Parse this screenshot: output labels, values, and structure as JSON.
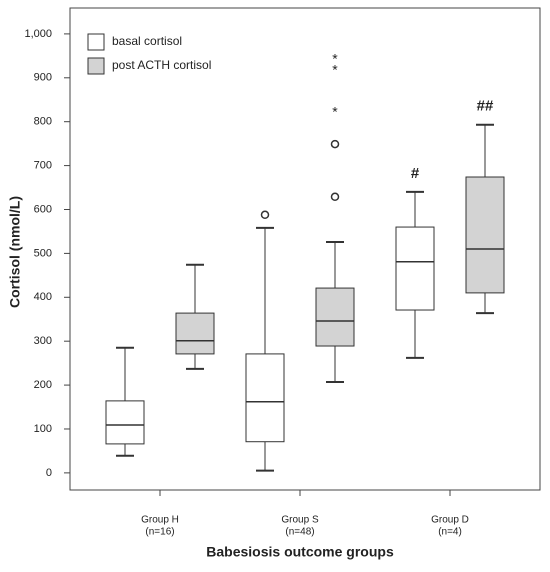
{
  "chart_data": {
    "type": "boxplot",
    "x_label": "Babesiosis outcome groups",
    "y_label": "Cortisol (nmol/L)",
    "categories": [
      "Group H",
      "Group S",
      "Group D"
    ],
    "category_notes": [
      "(n=16)",
      "(n=48)",
      "(n=4)"
    ],
    "ylim": [
      -39,
      1059
    ],
    "yticks": [
      0,
      100,
      200,
      300,
      400,
      500,
      600,
      700,
      800,
      900,
      {
        "value": 1000,
        "label": "1,000"
      }
    ],
    "legend": "top-left",
    "series": [
      {
        "name": "basal cortisol",
        "color": "#ffffff",
        "boxes": [
          {
            "low": 39,
            "q1": 66,
            "median": 109,
            "q3": 164,
            "high": 285,
            "outliers": [],
            "extremes": []
          },
          {
            "low": 5,
            "q1": 71,
            "median": 162,
            "q3": 271,
            "high": 558,
            "outliers": [
              588
            ],
            "extremes": []
          },
          {
            "low": 262,
            "q1": 371,
            "median": 481,
            "q3": 560,
            "high": 640,
            "outliers": [],
            "extremes": []
          }
        ],
        "markers": [
          null,
          null,
          "#"
        ]
      },
      {
        "name": "post ACTH cortisol",
        "color": "#d3d3d3",
        "boxes": [
          {
            "low": 237,
            "q1": 271,
            "median": 301,
            "q3": 364,
            "high": 474,
            "outliers": [],
            "extremes": []
          },
          {
            "low": 207,
            "q1": 289,
            "median": 346,
            "q3": 421,
            "high": 526,
            "outliers": [
              629,
              749
            ],
            "extremes": [
              827,
              923,
              948
            ]
          },
          {
            "low": 364,
            "q1": 410,
            "median": 510,
            "q3": 674,
            "high": 793,
            "outliers": [],
            "extremes": []
          }
        ],
        "markers": [
          null,
          null,
          "##"
        ]
      }
    ]
  }
}
